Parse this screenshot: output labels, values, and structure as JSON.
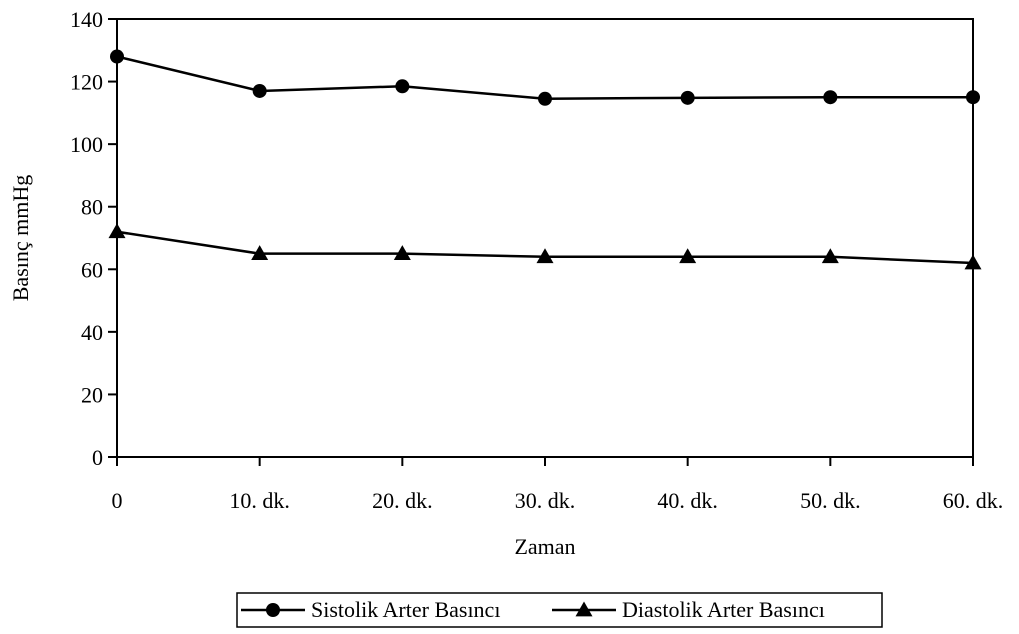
{
  "chart_data": {
    "type": "line",
    "categories": [
      "0",
      "10. dk.",
      "20. dk.",
      "30. dk.",
      "40. dk.",
      "50. dk.",
      "60. dk."
    ],
    "series": [
      {
        "name": "Sistolik Arter Basıncı",
        "marker": "circle",
        "values": [
          128,
          117,
          118.5,
          114.5,
          114.8,
          115,
          115
        ]
      },
      {
        "name": "Diastolik Arter Basıncı",
        "marker": "triangle",
        "values": [
          72,
          65,
          65,
          64,
          64,
          64,
          62
        ]
      }
    ],
    "yticks": [
      0,
      20,
      40,
      60,
      80,
      100,
      120,
      140
    ],
    "ylim": [
      0,
      140
    ],
    "xlabel": "Zaman",
    "ylabel": "Basınç mmHg",
    "title": "",
    "grid": false,
    "legend_position": "bottom",
    "colors": {
      "line": "#000000",
      "background": "#ffffff"
    }
  }
}
